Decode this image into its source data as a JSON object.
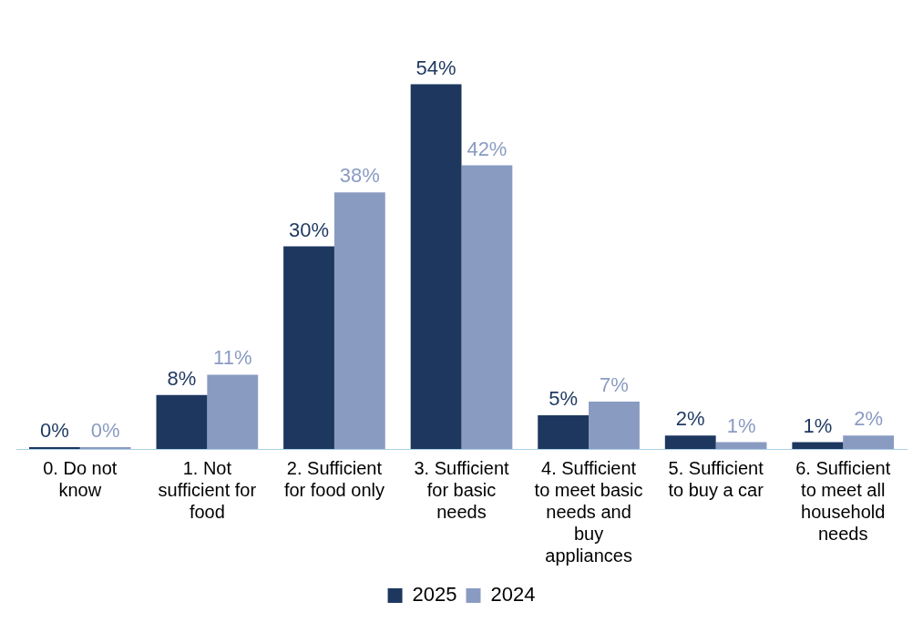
{
  "chart_data": {
    "type": "bar",
    "categories": [
      "0. Do not know",
      "1. Not sufficient for food",
      "2. Sufficient for food only",
      "3. Sufficient for basic needs",
      "4. Sufficient to meet basic needs and buy appliances",
      "5. Sufficient to buy a car",
      "6. Sufficient to meet all household needs"
    ],
    "series": [
      {
        "name": "2025",
        "color": "#1d375f",
        "values": [
          0,
          8,
          30,
          54,
          5,
          2,
          1
        ],
        "value_labels": [
          "0%",
          "8%",
          "30%",
          "54%",
          "5%",
          "2%",
          "1%"
        ]
      },
      {
        "name": "2024",
        "color": "#8a9bc2",
        "values": [
          0,
          11,
          38,
          42,
          7,
          1,
          2
        ],
        "value_labels": [
          "0%",
          "11%",
          "38%",
          "42%",
          "7%",
          "1%",
          "2%"
        ]
      }
    ],
    "legend": "bottom",
    "grid": false
  }
}
